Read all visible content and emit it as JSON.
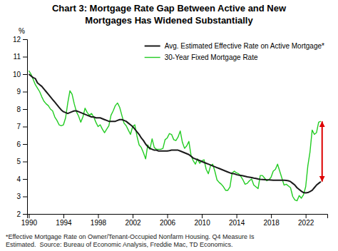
{
  "chart_data": {
    "type": "line",
    "title": "Chart 3: Mortgage Rate Gap Between Active and New\nMortgages Has Widened Substantially",
    "y_label": "%",
    "footnote": "*Effective Mortgage Rate on Owner/Tenant-Occupied Nonfarm Housing. Q4 Measure Is\nEstimated.  Source: Bureau of Economic Analysis, Freddie Mac, TD Economics.",
    "xlim": [
      1989.8,
      2024.5
    ],
    "ylim": [
      2,
      12
    ],
    "xticks": [
      1990,
      1994,
      1998,
      2002,
      2006,
      2010,
      2014,
      2018,
      2022
    ],
    "yticks": [
      2,
      3,
      4,
      5,
      6,
      7,
      8,
      9,
      10,
      11,
      12
    ],
    "grid": false,
    "legend": "upper right",
    "x": [
      1990.0,
      1990.25,
      1990.5,
      1990.75,
      1991.0,
      1991.25,
      1991.5,
      1991.75,
      1992.0,
      1992.25,
      1992.5,
      1992.75,
      1993.0,
      1993.25,
      1993.5,
      1993.75,
      1994.0,
      1994.25,
      1994.5,
      1994.75,
      1995.0,
      1995.25,
      1995.5,
      1995.75,
      1996.0,
      1996.25,
      1996.5,
      1996.75,
      1997.0,
      1997.25,
      1997.5,
      1997.75,
      1998.0,
      1998.25,
      1998.5,
      1998.75,
      1999.0,
      1999.25,
      1999.5,
      1999.75,
      2000.0,
      2000.25,
      2000.5,
      2000.75,
      2001.0,
      2001.25,
      2001.5,
      2001.75,
      2002.0,
      2002.25,
      2002.5,
      2002.75,
      2003.0,
      2003.25,
      2003.5,
      2003.75,
      2004.0,
      2004.25,
      2004.5,
      2004.75,
      2005.0,
      2005.25,
      2005.5,
      2005.75,
      2006.0,
      2006.25,
      2006.5,
      2006.75,
      2007.0,
      2007.25,
      2007.5,
      2007.75,
      2008.0,
      2008.25,
      2008.5,
      2008.75,
      2009.0,
      2009.25,
      2009.5,
      2009.75,
      2010.0,
      2010.25,
      2010.5,
      2010.75,
      2011.0,
      2011.25,
      2011.5,
      2011.75,
      2012.0,
      2012.25,
      2012.5,
      2012.75,
      2013.0,
      2013.25,
      2013.5,
      2013.75,
      2014.0,
      2014.25,
      2014.5,
      2014.75,
      2015.0,
      2015.25,
      2015.5,
      2015.75,
      2016.0,
      2016.25,
      2016.5,
      2016.75,
      2017.0,
      2017.25,
      2017.5,
      2017.75,
      2018.0,
      2018.25,
      2018.5,
      2018.75,
      2019.0,
      2019.25,
      2019.5,
      2019.75,
      2020.0,
      2020.25,
      2020.5,
      2020.75,
      2021.0,
      2021.25,
      2021.5,
      2021.75,
      2022.0,
      2022.25,
      2022.5,
      2022.75,
      2023.0,
      2023.25,
      2023.5,
      2023.75
    ],
    "series": [
      {
        "name": "Avg. Estimated Effective Rate on Active Mortgage*",
        "color": "#1a1a1a",
        "values": [
          10.0,
          9.9,
          9.8,
          9.75,
          9.5,
          9.4,
          9.3,
          9.15,
          9.0,
          8.85,
          8.7,
          8.55,
          8.4,
          8.25,
          8.1,
          7.95,
          7.85,
          7.8,
          7.75,
          7.8,
          7.85,
          7.9,
          7.9,
          7.85,
          7.8,
          7.75,
          7.7,
          7.65,
          7.6,
          7.55,
          7.55,
          7.5,
          7.5,
          7.5,
          7.45,
          7.4,
          7.35,
          7.3,
          7.3,
          7.3,
          7.3,
          7.35,
          7.4,
          7.4,
          7.35,
          7.3,
          7.2,
          7.1,
          7.0,
          6.85,
          6.7,
          6.55,
          6.35,
          6.2,
          6.0,
          5.85,
          5.75,
          5.7,
          5.65,
          5.65,
          5.6,
          5.6,
          5.6,
          5.6,
          5.6,
          5.62,
          5.65,
          5.65,
          5.65,
          5.65,
          5.6,
          5.55,
          5.5,
          5.45,
          5.4,
          5.3,
          5.2,
          5.15,
          5.1,
          5.05,
          5.0,
          4.95,
          4.9,
          4.85,
          4.8,
          4.75,
          4.7,
          4.65,
          4.6,
          4.55,
          4.5,
          4.45,
          4.4,
          4.35,
          4.32,
          4.3,
          4.25,
          4.22,
          4.2,
          4.18,
          4.15,
          4.12,
          4.1,
          4.08,
          4.05,
          4.03,
          4.0,
          3.98,
          3.97,
          3.96,
          3.95,
          3.95,
          3.94,
          3.93,
          3.93,
          3.93,
          3.93,
          3.93,
          3.93,
          3.92,
          3.9,
          3.85,
          3.75,
          3.65,
          3.5,
          3.4,
          3.3,
          3.22,
          3.2,
          3.22,
          3.28,
          3.35,
          3.5,
          3.65,
          3.75,
          3.85
        ]
      },
      {
        "name": "30-Year Fixed Mortgage Rate",
        "color": "#22cc22",
        "values": [
          10.2,
          10.0,
          9.7,
          9.4,
          9.2,
          9.0,
          8.7,
          8.45,
          8.3,
          8.2,
          8.0,
          7.9,
          7.55,
          7.35,
          7.1,
          7.05,
          7.1,
          7.5,
          8.35,
          9.05,
          8.85,
          8.3,
          7.85,
          7.6,
          7.25,
          7.55,
          8.05,
          7.8,
          7.65,
          7.75,
          7.55,
          7.25,
          7.0,
          7.1,
          6.85,
          6.65,
          6.85,
          7.05,
          7.65,
          7.9,
          8.2,
          8.35,
          8.1,
          7.65,
          7.2,
          7.05,
          6.8,
          6.55,
          7.0,
          7.1,
          6.45,
          5.95,
          5.8,
          5.5,
          5.15,
          5.95,
          5.7,
          6.3,
          5.8,
          5.7,
          5.7,
          5.7,
          5.75,
          6.25,
          6.35,
          6.6,
          6.55,
          6.25,
          6.2,
          6.4,
          6.75,
          6.1,
          5.75,
          5.9,
          6.15,
          5.35,
          5.05,
          4.85,
          5.15,
          4.9,
          5.05,
          5.1,
          4.55,
          4.3,
          4.75,
          4.85,
          4.45,
          3.95,
          3.8,
          3.7,
          3.55,
          3.35,
          3.35,
          3.55,
          4.35,
          4.45,
          4.35,
          4.3,
          4.15,
          3.95,
          3.7,
          3.75,
          3.9,
          4.0,
          3.65,
          3.55,
          3.45,
          4.2,
          4.2,
          4.05,
          3.9,
          3.95,
          4.1,
          4.45,
          4.55,
          4.85,
          4.45,
          4.05,
          3.65,
          3.7,
          3.6,
          3.5,
          3.0,
          2.8,
          2.75,
          3.05,
          2.9,
          3.1,
          3.55,
          4.75,
          5.55,
          6.8,
          6.55,
          6.65,
          7.25,
          7.3
        ]
      }
    ],
    "arrow": {
      "x": 2023.9,
      "y": [
        7.3,
        3.85
      ],
      "color": "#dd0000"
    }
  }
}
